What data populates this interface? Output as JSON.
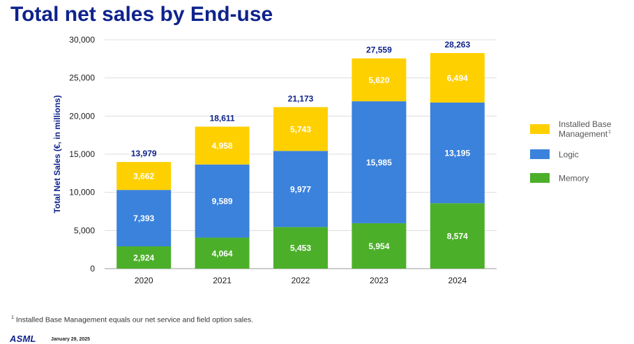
{
  "page": {
    "title": "Total net sales by End-use",
    "footnote_marker": "1",
    "footnote": "Installed Base Management equals our net service and field option sales.",
    "logo": "ASML",
    "date": "January 29, 2025"
  },
  "chart_data": {
    "type": "bar",
    "stacked": true,
    "title": "",
    "xlabel": "",
    "ylabel": "Total Net Sales (€, in millions)",
    "ylim": [
      0,
      30000
    ],
    "yticks": [
      0,
      5000,
      10000,
      15000,
      20000,
      25000,
      30000
    ],
    "ytick_labels": [
      "0",
      "5,000",
      "10,000",
      "15,000",
      "20,000",
      "25,000",
      "30,000"
    ],
    "grid": true,
    "legend_position": "right",
    "categories": [
      "2020",
      "2021",
      "2022",
      "2023",
      "2024"
    ],
    "series": [
      {
        "name": "Memory",
        "color": "#4caf2a",
        "values": [
          2924,
          4064,
          5453,
          5954,
          8574
        ],
        "labels": [
          "2,924",
          "4,064",
          "5,453",
          "5,954",
          "8,574"
        ]
      },
      {
        "name": "Logic",
        "color": "#3b82dc",
        "values": [
          7393,
          9589,
          9977,
          15985,
          13195
        ],
        "labels": [
          "7,393",
          "9,589",
          "9,977",
          "15,985",
          "13,195"
        ]
      },
      {
        "name": "Installed Base Management",
        "legend_lines": [
          "Installed Base",
          "Management"
        ],
        "legend_sup": "1",
        "color": "#ffd000",
        "values": [
          3662,
          4958,
          5743,
          5620,
          6494
        ],
        "labels": [
          "3,662",
          "4,958",
          "5,743",
          "5,620",
          "6,494"
        ]
      }
    ],
    "totals": [
      13979,
      18611,
      21173,
      27559,
      28263
    ],
    "total_labels": [
      "13,979",
      "18,611",
      "21,173",
      "27,559",
      "28,263"
    ],
    "legend_order": [
      "Installed Base Management",
      "Logic",
      "Memory"
    ]
  }
}
